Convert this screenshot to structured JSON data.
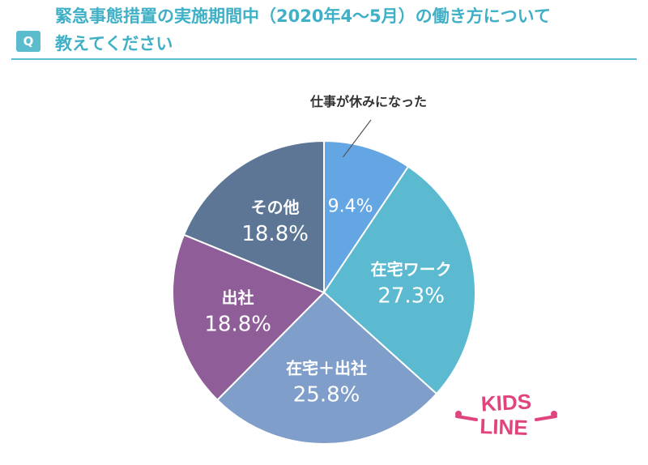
{
  "header": {
    "badge": "Q",
    "title_line1": "緊急事態措置の実施期間中（2020年4〜5月）の働き方について",
    "title_line2": "教えてください"
  },
  "chart_data": {
    "type": "pie",
    "title": "",
    "slices": [
      {
        "label": "仕事が休みになった",
        "value": 9.4,
        "value_label": "9.4%",
        "color": "#64a6e3",
        "label_outside": true
      },
      {
        "label": "在宅ワーク",
        "value": 27.3,
        "value_label": "27.3%",
        "color": "#5cbad0"
      },
      {
        "label": "在宅＋出社",
        "value": 25.8,
        "value_label": "25.8%",
        "color": "#7f9ec9"
      },
      {
        "label": "出社",
        "value": 18.8,
        "value_label": "18.8%",
        "color": "#8f5e98"
      },
      {
        "label": "その他",
        "value": 18.8,
        "value_label": "18.8%",
        "color": "#5d7695"
      }
    ]
  },
  "logo": {
    "line1": "KIDS",
    "line2": "LINE",
    "color": "#e0447f"
  }
}
